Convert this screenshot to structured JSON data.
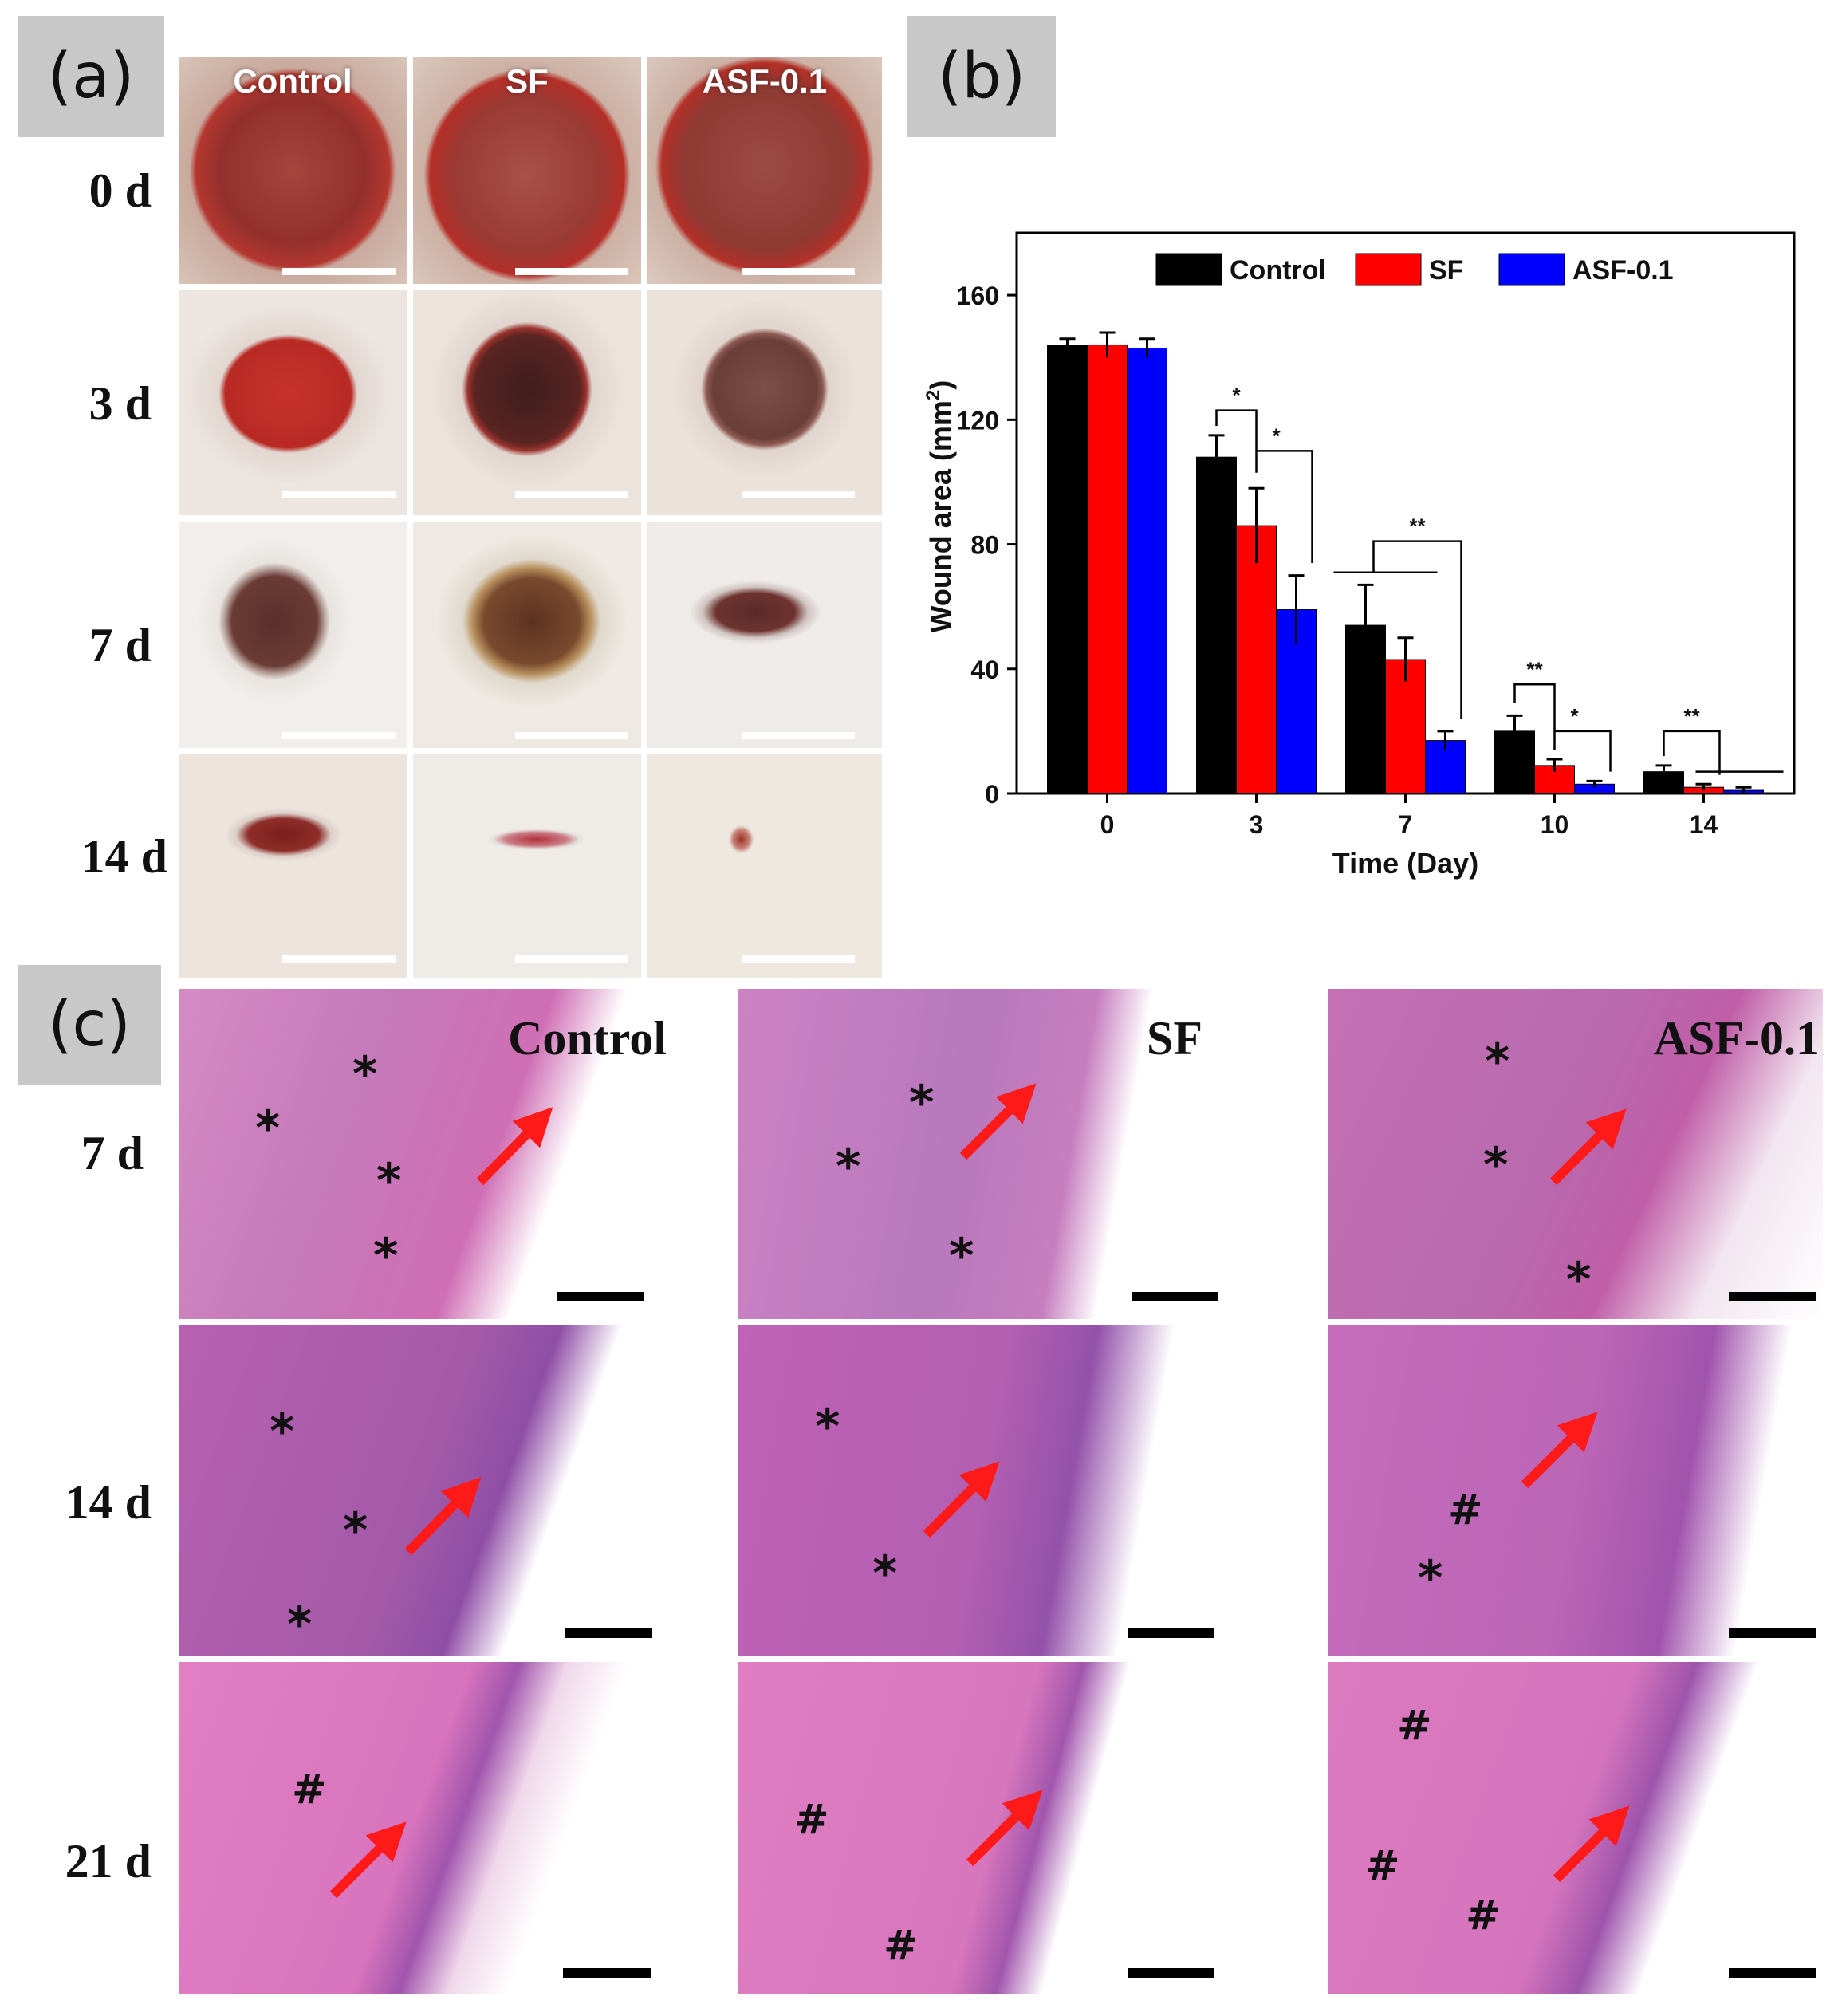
{
  "panels": {
    "a": "(a)",
    "b": "(b)",
    "c": "(c)"
  },
  "panel_a": {
    "columns": [
      "Control",
      "SF",
      "ASF-0.1"
    ],
    "rows": [
      "0 d",
      "3 d",
      "7 d",
      "14 d"
    ]
  },
  "panel_c": {
    "columns": [
      "Control",
      "SF",
      "ASF-0.1"
    ],
    "rows": [
      "7 d",
      "14 d",
      "21 d"
    ],
    "markers": {
      "asterisk": "*",
      "hash": "#"
    }
  },
  "colors": {
    "control": "#000000",
    "sf": "#ff0000",
    "asf": "#0000ff",
    "arrow": "#ff1a1a"
  },
  "chart_data": {
    "type": "bar",
    "categories": [
      "0",
      "3",
      "7",
      "10",
      "14"
    ],
    "series": [
      {
        "name": "Control",
        "values": [
          144,
          108,
          54,
          20,
          7
        ],
        "errors": [
          2,
          7,
          13,
          5,
          2
        ]
      },
      {
        "name": "SF",
        "values": [
          144,
          86,
          43,
          9,
          2
        ],
        "errors": [
          4,
          12,
          7,
          2,
          1
        ]
      },
      {
        "name": "ASF-0.1",
        "values": [
          143,
          59,
          17,
          3,
          1
        ],
        "errors": [
          3,
          11,
          3,
          1,
          1
        ]
      }
    ],
    "xlabel": "Time (Day)",
    "ylabel": "Wound area (mm",
    "ylabel_sup": "2",
    "ylabel_tail": ")",
    "ylim": [
      0,
      180
    ],
    "yticks": [
      0,
      40,
      80,
      120,
      160
    ],
    "legend": "top",
    "significance": [
      "*",
      "*",
      "**",
      "**",
      "*",
      "**"
    ]
  }
}
